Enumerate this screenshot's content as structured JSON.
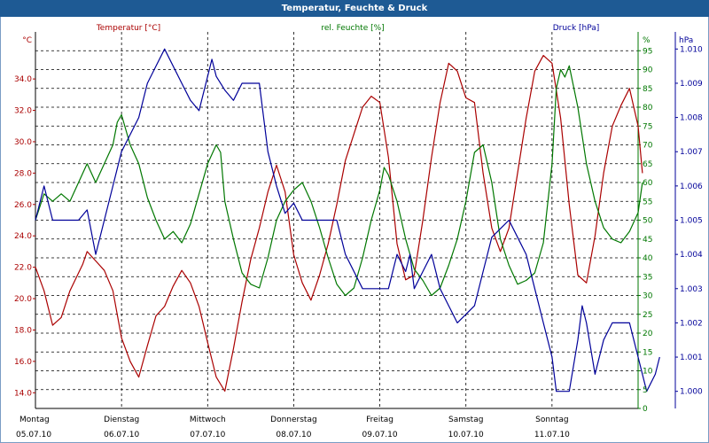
{
  "window": {
    "title": "Temperatur, Feuchte & Druck"
  },
  "chart_data": {
    "type": "line",
    "title": "Temperatur, Feuchte & Druck",
    "x_days": [
      {
        "day": "Montag",
        "date": "05.07.10"
      },
      {
        "day": "Dienstag",
        "date": "06.07.10"
      },
      {
        "day": "Mittwoch",
        "date": "07.07.10"
      },
      {
        "day": "Donnerstag",
        "date": "08.07.10"
      },
      {
        "day": "Freitag",
        "date": "09.07.10"
      },
      {
        "day": "Samstag",
        "date": "10.07.10"
      },
      {
        "day": "Sonntag",
        "date": "11.07.10"
      }
    ],
    "xlim": [
      0,
      7
    ],
    "axes": {
      "temperature": {
        "label": "Temperatur [°C]",
        "unit_label": "°C",
        "color": "#aa0000",
        "ylim": [
          13,
          37
        ],
        "ticks": [
          14.0,
          16.0,
          18.0,
          20.0,
          22.0,
          24.0,
          26.0,
          28.0,
          30.0,
          32.0,
          34.0
        ],
        "tick_labels": [
          "14.0",
          "16.0",
          "18.0",
          "20.0",
          "22.0",
          "24.0",
          "26.0",
          "28.0",
          "30.0",
          "32.0",
          "34.0"
        ]
      },
      "humidity": {
        "label": "rel. Feuchte [%]",
        "unit_label": "%",
        "color": "#007700",
        "ylim": [
          0,
          100
        ],
        "ticks": [
          0,
          5,
          10,
          15,
          20,
          25,
          30,
          35,
          40,
          45,
          50,
          55,
          60,
          65,
          70,
          75,
          80,
          85,
          90,
          95
        ],
        "tick_labels": [
          "0",
          "5",
          "10",
          "15",
          "20",
          "25",
          "30",
          "35",
          "40",
          "45",
          "50",
          "55",
          "60",
          "65",
          "70",
          "75",
          "80",
          "85",
          "90",
          "95"
        ]
      },
      "pressure": {
        "label": "Druck [hPa]",
        "unit_label": "hPa",
        "color": "#000099",
        "ylim": [
          0.9995,
          1.0105
        ],
        "ticks": [
          1.0,
          1.001,
          1.002,
          1.003,
          1.004,
          1.005,
          1.006,
          1.007,
          1.008,
          1.009,
          1.01
        ],
        "tick_labels": [
          "1.000",
          "1.001",
          "1.002",
          "1.003",
          "1.004",
          "1.005",
          "1.006",
          "1.007",
          "1.008",
          "1.009",
          "1.010"
        ]
      }
    },
    "series": [
      {
        "name": "Temperatur",
        "axis": "temperature",
        "color": "#aa0000",
        "points": [
          [
            0,
            22
          ],
          [
            0.1,
            20.5
          ],
          [
            0.2,
            18.3
          ],
          [
            0.3,
            18.8
          ],
          [
            0.4,
            20.5
          ],
          [
            0.55,
            22.2
          ],
          [
            0.6,
            23.0
          ],
          [
            0.7,
            22.4
          ],
          [
            0.8,
            21.8
          ],
          [
            0.9,
            20.5
          ],
          [
            1.0,
            17.5
          ],
          [
            1.1,
            16.0
          ],
          [
            1.2,
            15.0
          ],
          [
            1.3,
            17.0
          ],
          [
            1.4,
            18.9
          ],
          [
            1.5,
            19.5
          ],
          [
            1.6,
            20.8
          ],
          [
            1.7,
            21.8
          ],
          [
            1.8,
            21.0
          ],
          [
            1.9,
            19.5
          ],
          [
            2.0,
            17.2
          ],
          [
            2.1,
            15.0
          ],
          [
            2.2,
            14.1
          ],
          [
            2.3,
            16.8
          ],
          [
            2.4,
            19.8
          ],
          [
            2.5,
            22.5
          ],
          [
            2.6,
            24.5
          ],
          [
            2.7,
            26.8
          ],
          [
            2.8,
            28.5
          ],
          [
            2.9,
            26.8
          ],
          [
            3.0,
            22.8
          ],
          [
            3.1,
            21.0
          ],
          [
            3.2,
            19.9
          ],
          [
            3.3,
            21.5
          ],
          [
            3.4,
            23.5
          ],
          [
            3.5,
            26.0
          ],
          [
            3.6,
            28.8
          ],
          [
            3.7,
            30.5
          ],
          [
            3.8,
            32.2
          ],
          [
            3.9,
            32.9
          ],
          [
            4.0,
            32.5
          ],
          [
            4.1,
            29.0
          ],
          [
            4.2,
            23.5
          ],
          [
            4.3,
            21.2
          ],
          [
            4.4,
            21.5
          ],
          [
            4.5,
            25.0
          ],
          [
            4.6,
            29.0
          ],
          [
            4.7,
            32.5
          ],
          [
            4.8,
            35.0
          ],
          [
            4.9,
            34.5
          ],
          [
            5.0,
            32.8
          ],
          [
            5.1,
            32.5
          ],
          [
            5.2,
            28.0
          ],
          [
            5.3,
            24.5
          ],
          [
            5.4,
            23.0
          ],
          [
            5.5,
            24.5
          ],
          [
            5.6,
            28.0
          ],
          [
            5.7,
            31.5
          ],
          [
            5.8,
            34.5
          ],
          [
            5.9,
            35.5
          ],
          [
            6.0,
            35.0
          ],
          [
            6.1,
            31.5
          ],
          [
            6.2,
            26.0
          ],
          [
            6.3,
            21.5
          ],
          [
            6.4,
            21.0
          ],
          [
            6.5,
            24.0
          ],
          [
            6.6,
            28.0
          ],
          [
            6.7,
            31.0
          ],
          [
            6.8,
            32.3
          ],
          [
            6.9,
            33.4
          ],
          [
            7.0,
            31.0
          ],
          [
            7.05,
            28.0
          ]
        ]
      },
      {
        "name": "rel. Feuchte",
        "axis": "humidity",
        "color": "#007700",
        "points": [
          [
            0,
            50
          ],
          [
            0.1,
            57
          ],
          [
            0.2,
            55
          ],
          [
            0.3,
            57
          ],
          [
            0.4,
            55
          ],
          [
            0.5,
            60
          ],
          [
            0.6,
            65
          ],
          [
            0.7,
            60
          ],
          [
            0.8,
            65
          ],
          [
            0.9,
            70
          ],
          [
            0.95,
            76
          ],
          [
            1.0,
            78
          ],
          [
            1.1,
            70
          ],
          [
            1.2,
            65
          ],
          [
            1.3,
            56
          ],
          [
            1.4,
            50
          ],
          [
            1.5,
            45
          ],
          [
            1.6,
            47
          ],
          [
            1.7,
            44
          ],
          [
            1.8,
            49
          ],
          [
            1.9,
            57
          ],
          [
            2.0,
            65
          ],
          [
            2.1,
            70
          ],
          [
            2.15,
            68
          ],
          [
            2.2,
            55
          ],
          [
            2.3,
            45
          ],
          [
            2.4,
            36
          ],
          [
            2.5,
            33
          ],
          [
            2.6,
            32
          ],
          [
            2.7,
            40
          ],
          [
            2.8,
            50
          ],
          [
            2.9,
            55
          ],
          [
            3.0,
            58
          ],
          [
            3.1,
            60
          ],
          [
            3.2,
            55
          ],
          [
            3.3,
            48
          ],
          [
            3.4,
            40
          ],
          [
            3.5,
            33
          ],
          [
            3.6,
            30
          ],
          [
            3.7,
            32
          ],
          [
            3.8,
            40
          ],
          [
            3.9,
            50
          ],
          [
            4.0,
            58
          ],
          [
            4.05,
            64
          ],
          [
            4.1,
            62
          ],
          [
            4.2,
            55
          ],
          [
            4.3,
            45
          ],
          [
            4.4,
            37
          ],
          [
            4.5,
            34
          ],
          [
            4.6,
            30
          ],
          [
            4.7,
            32
          ],
          [
            4.8,
            38
          ],
          [
            4.9,
            45
          ],
          [
            5.0,
            55
          ],
          [
            5.1,
            68
          ],
          [
            5.2,
            70
          ],
          [
            5.3,
            60
          ],
          [
            5.4,
            45
          ],
          [
            5.5,
            38
          ],
          [
            5.6,
            33
          ],
          [
            5.7,
            34
          ],
          [
            5.8,
            36
          ],
          [
            5.9,
            44
          ],
          [
            6.0,
            65
          ],
          [
            6.05,
            85
          ],
          [
            6.1,
            90
          ],
          [
            6.15,
            88
          ],
          [
            6.2,
            91
          ],
          [
            6.3,
            80
          ],
          [
            6.4,
            65
          ],
          [
            6.5,
            55
          ],
          [
            6.6,
            48
          ],
          [
            6.7,
            45
          ],
          [
            6.8,
            44
          ],
          [
            6.9,
            47
          ],
          [
            7.0,
            52
          ],
          [
            7.05,
            60
          ]
        ]
      },
      {
        "name": "Druck",
        "axis": "pressure",
        "color": "#000099",
        "points": [
          [
            0,
            1.005
          ],
          [
            0.1,
            1.006
          ],
          [
            0.2,
            1.005
          ],
          [
            0.5,
            1.005
          ],
          [
            0.6,
            1.0053
          ],
          [
            0.7,
            1.004
          ],
          [
            0.8,
            1.005
          ],
          [
            0.9,
            1.006
          ],
          [
            1.0,
            1.007
          ],
          [
            1.1,
            1.0075
          ],
          [
            1.2,
            1.008
          ],
          [
            1.3,
            1.009
          ],
          [
            1.4,
            1.0095
          ],
          [
            1.5,
            1.01
          ],
          [
            1.7,
            1.009
          ],
          [
            1.8,
            1.0085
          ],
          [
            1.9,
            1.0082
          ],
          [
            2.0,
            1.0092
          ],
          [
            2.05,
            1.0097
          ],
          [
            2.1,
            1.0092
          ],
          [
            2.2,
            1.0088
          ],
          [
            2.3,
            1.0085
          ],
          [
            2.4,
            1.009
          ],
          [
            2.6,
            1.009
          ],
          [
            2.7,
            1.007
          ],
          [
            2.8,
            1.006
          ],
          [
            2.9,
            1.0052
          ],
          [
            3.0,
            1.0055
          ],
          [
            3.1,
            1.005
          ],
          [
            3.5,
            1.005
          ],
          [
            3.6,
            1.004
          ],
          [
            3.8,
            1.003
          ],
          [
            4.0,
            1.003
          ],
          [
            4.1,
            1.003
          ],
          [
            4.2,
            1.004
          ],
          [
            4.3,
            1.0035
          ],
          [
            4.35,
            1.004
          ],
          [
            4.4,
            1.003
          ],
          [
            4.5,
            1.0035
          ],
          [
            4.6,
            1.004
          ],
          [
            4.7,
            1.003
          ],
          [
            4.8,
            1.0025
          ],
          [
            4.9,
            1.002
          ],
          [
            5.1,
            1.0025
          ],
          [
            5.2,
            1.0035
          ],
          [
            5.3,
            1.0045
          ],
          [
            5.5,
            1.005
          ],
          [
            5.6,
            1.0045
          ],
          [
            5.7,
            1.004
          ],
          [
            5.8,
            1.003
          ],
          [
            5.9,
            1.002
          ],
          [
            6.0,
            1.001
          ],
          [
            6.05,
            1.0
          ],
          [
            6.2,
            1.0
          ],
          [
            6.3,
            1.0015
          ],
          [
            6.35,
            1.0025
          ],
          [
            6.4,
            1.002
          ],
          [
            6.5,
            1.0005
          ],
          [
            6.6,
            1.0015
          ],
          [
            6.7,
            1.002
          ],
          [
            6.9,
            1.002
          ],
          [
            7.0,
            1.001
          ],
          [
            7.1,
            1.0
          ],
          [
            7.2,
            1.0005
          ],
          [
            7.25,
            1.001
          ]
        ]
      }
    ]
  }
}
